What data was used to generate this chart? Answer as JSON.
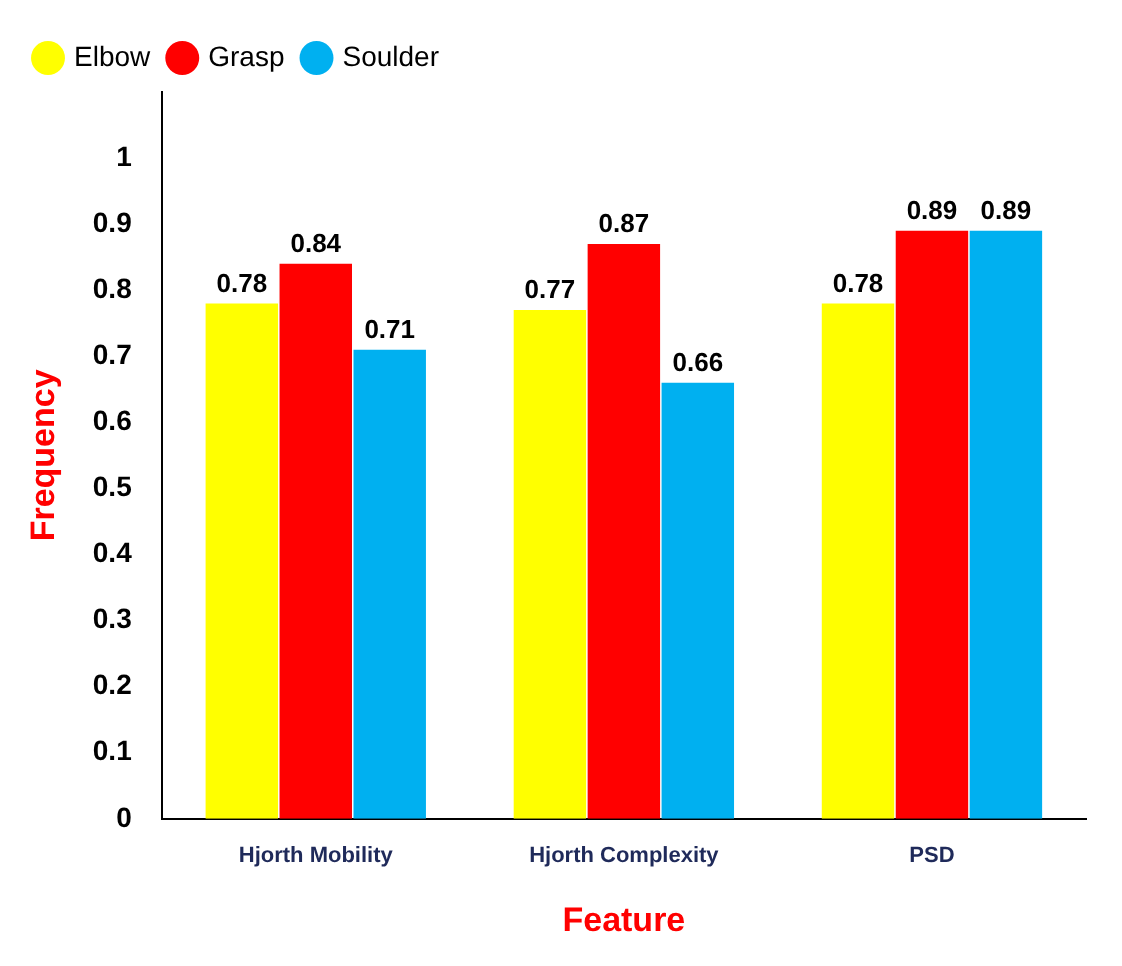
{
  "chart_data": {
    "type": "bar",
    "xlabel": "Feature",
    "ylabel": "Frequency",
    "categories": [
      "Hjorth Mobility",
      "Hjorth Complexity",
      "PSD"
    ],
    "series": [
      {
        "name": "Elbow",
        "color": "#ffff00",
        "values": [
          0.78,
          0.77,
          0.78
        ]
      },
      {
        "name": "Grasp",
        "color": "#ff0000",
        "values": [
          0.84,
          0.87,
          0.89
        ]
      },
      {
        "name": "Soulder",
        "color": "#00b0f0",
        "values": [
          0.71,
          0.66,
          0.89
        ]
      }
    ],
    "ylim": [
      0,
      1.1
    ],
    "yticks": [
      0,
      0.1,
      0.2,
      0.3,
      0.4,
      0.5,
      0.6,
      0.7,
      0.8,
      0.9,
      1
    ],
    "grid": false,
    "legend": "top left",
    "data_labels": true
  }
}
